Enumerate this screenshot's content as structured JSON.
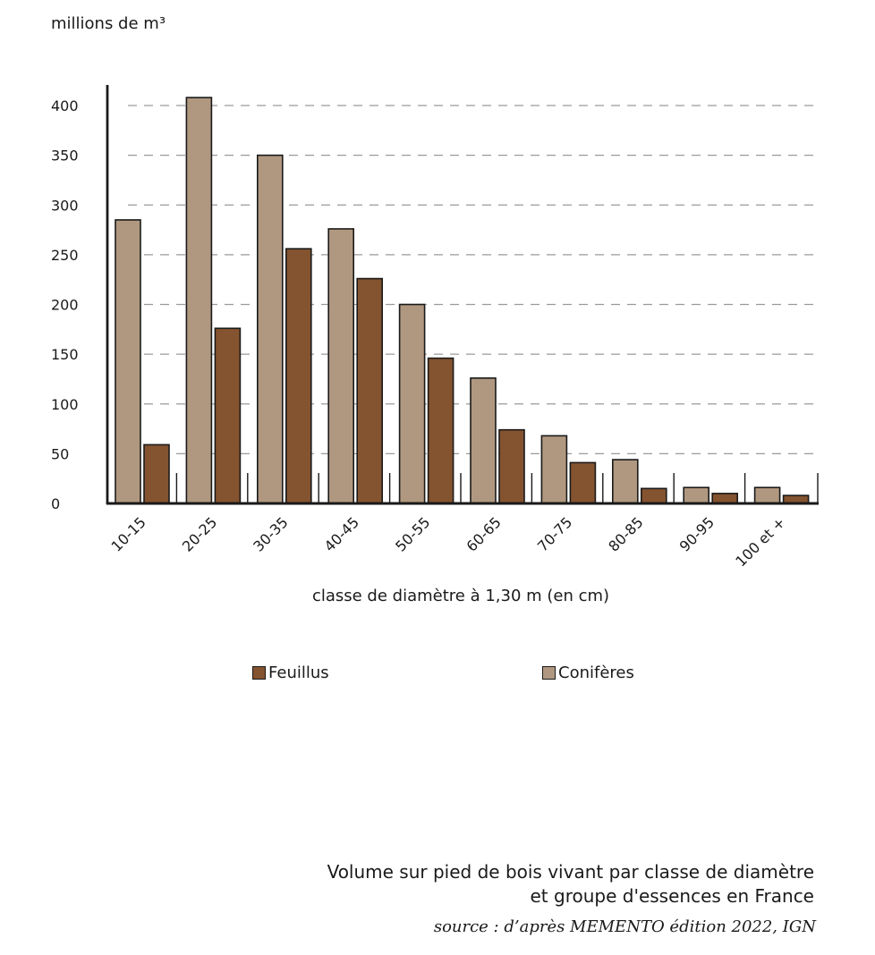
{
  "chart_data": {
    "type": "bar",
    "title": "Volume sur pied de bois vivant par classe de diamètre et groupe d'essences en France",
    "ylabel": "millions de m³",
    "xlabel": "classe de diamètre à 1,30 m (en cm)",
    "ylim": [
      0,
      400
    ],
    "yticks": [
      0,
      50,
      100,
      150,
      200,
      250,
      300,
      350,
      400
    ],
    "grid": true,
    "categories": [
      "10-15",
      "20-25",
      "30-35",
      "40-45",
      "50-55",
      "60-65",
      "70-75",
      "80-85",
      "90-95",
      "100 et +"
    ],
    "series": [
      {
        "name": "Conifères",
        "color": "#b09880",
        "values": [
          285,
          408,
          350,
          276,
          200,
          126,
          68,
          44,
          16,
          16
        ]
      },
      {
        "name": "Feuillus",
        "color": "#84532f",
        "values": [
          59,
          176,
          256,
          226,
          146,
          74,
          41,
          15,
          10,
          8
        ]
      }
    ],
    "legend": [
      "Feuillus",
      "Conifères"
    ],
    "caption_lines": [
      "Volume sur pied de bois vivant par classe de diamètre",
      "et groupe d'essences en France"
    ],
    "source": "source : d’après MEMENTO édition 2022, IGN"
  }
}
